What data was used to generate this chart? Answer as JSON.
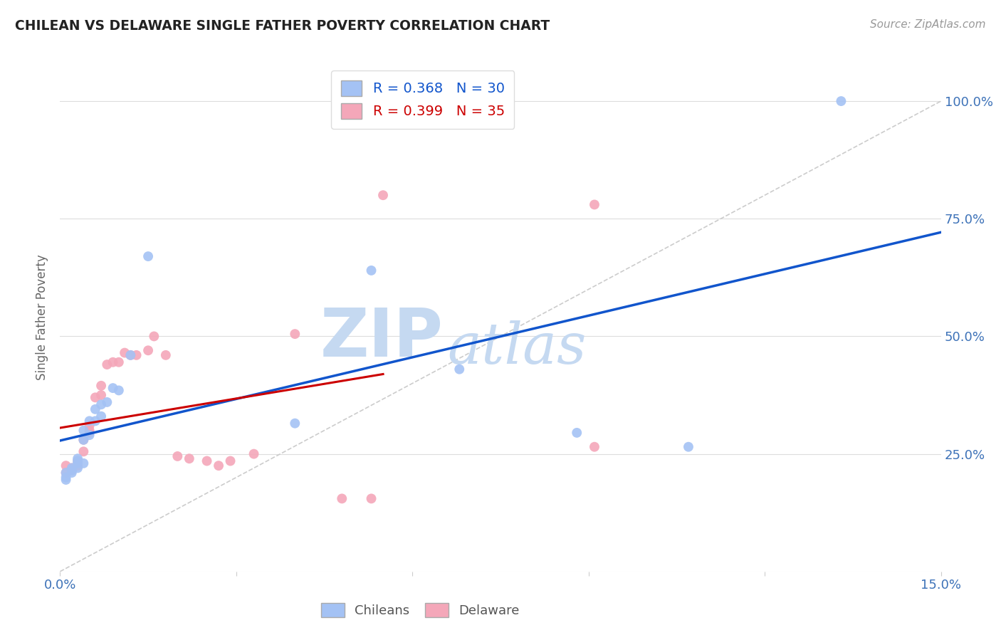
{
  "title": "CHILEAN VS DELAWARE SINGLE FATHER POVERTY CORRELATION CHART",
  "source": "Source: ZipAtlas.com",
  "ylabel": "Single Father Poverty",
  "xlim": [
    0,
    0.15
  ],
  "ylim": [
    0,
    1.08
  ],
  "x_ticks": [
    0.0,
    0.03,
    0.06,
    0.09,
    0.12,
    0.15
  ],
  "x_tick_labels": [
    "0.0%",
    "",
    "",
    "",
    "",
    "15.0%"
  ],
  "y_ticks": [
    0.0,
    0.25,
    0.5,
    0.75,
    1.0
  ],
  "y_tick_labels": [
    "",
    "25.0%",
    "50.0%",
    "75.0%",
    "100.0%"
  ],
  "chilean_color": "#a4c2f4",
  "delaware_color": "#f4a7b9",
  "trendline_chilean_color": "#1155cc",
  "trendline_delaware_color": "#cc0000",
  "diagonal_color": "#cccccc",
  "R_chilean": 0.368,
  "N_chilean": 30,
  "R_delaware": 0.399,
  "N_delaware": 35,
  "chilean_x": [
    0.001,
    0.001,
    0.001,
    0.002,
    0.002,
    0.002,
    0.003,
    0.003,
    0.003,
    0.003,
    0.004,
    0.004,
    0.004,
    0.005,
    0.005,
    0.006,
    0.006,
    0.007,
    0.007,
    0.008,
    0.009,
    0.01,
    0.012,
    0.015,
    0.04,
    0.053,
    0.068,
    0.088,
    0.107,
    0.133
  ],
  "chilean_y": [
    0.195,
    0.2,
    0.21,
    0.21,
    0.215,
    0.22,
    0.22,
    0.23,
    0.235,
    0.24,
    0.23,
    0.28,
    0.3,
    0.29,
    0.32,
    0.32,
    0.345,
    0.33,
    0.355,
    0.36,
    0.39,
    0.385,
    0.46,
    0.67,
    0.315,
    0.64,
    0.43,
    0.295,
    0.265,
    1.0
  ],
  "delaware_x": [
    0.001,
    0.001,
    0.002,
    0.002,
    0.003,
    0.003,
    0.004,
    0.004,
    0.005,
    0.005,
    0.005,
    0.006,
    0.007,
    0.007,
    0.008,
    0.009,
    0.01,
    0.011,
    0.012,
    0.013,
    0.015,
    0.016,
    0.018,
    0.02,
    0.022,
    0.025,
    0.027,
    0.029,
    0.033,
    0.04,
    0.048,
    0.053,
    0.055,
    0.091,
    0.091
  ],
  "delaware_y": [
    0.21,
    0.225,
    0.215,
    0.22,
    0.225,
    0.235,
    0.255,
    0.28,
    0.295,
    0.3,
    0.31,
    0.37,
    0.375,
    0.395,
    0.44,
    0.445,
    0.445,
    0.465,
    0.46,
    0.46,
    0.47,
    0.5,
    0.46,
    0.245,
    0.24,
    0.235,
    0.225,
    0.235,
    0.25,
    0.505,
    0.155,
    0.155,
    0.8,
    0.265,
    0.78
  ],
  "background_color": "#ffffff",
  "grid_color": "#dddddd",
  "watermark_text1": "ZIP",
  "watermark_text2": "atlas",
  "watermark_color1": "#c5d9f1",
  "watermark_color2": "#c5d9f1"
}
